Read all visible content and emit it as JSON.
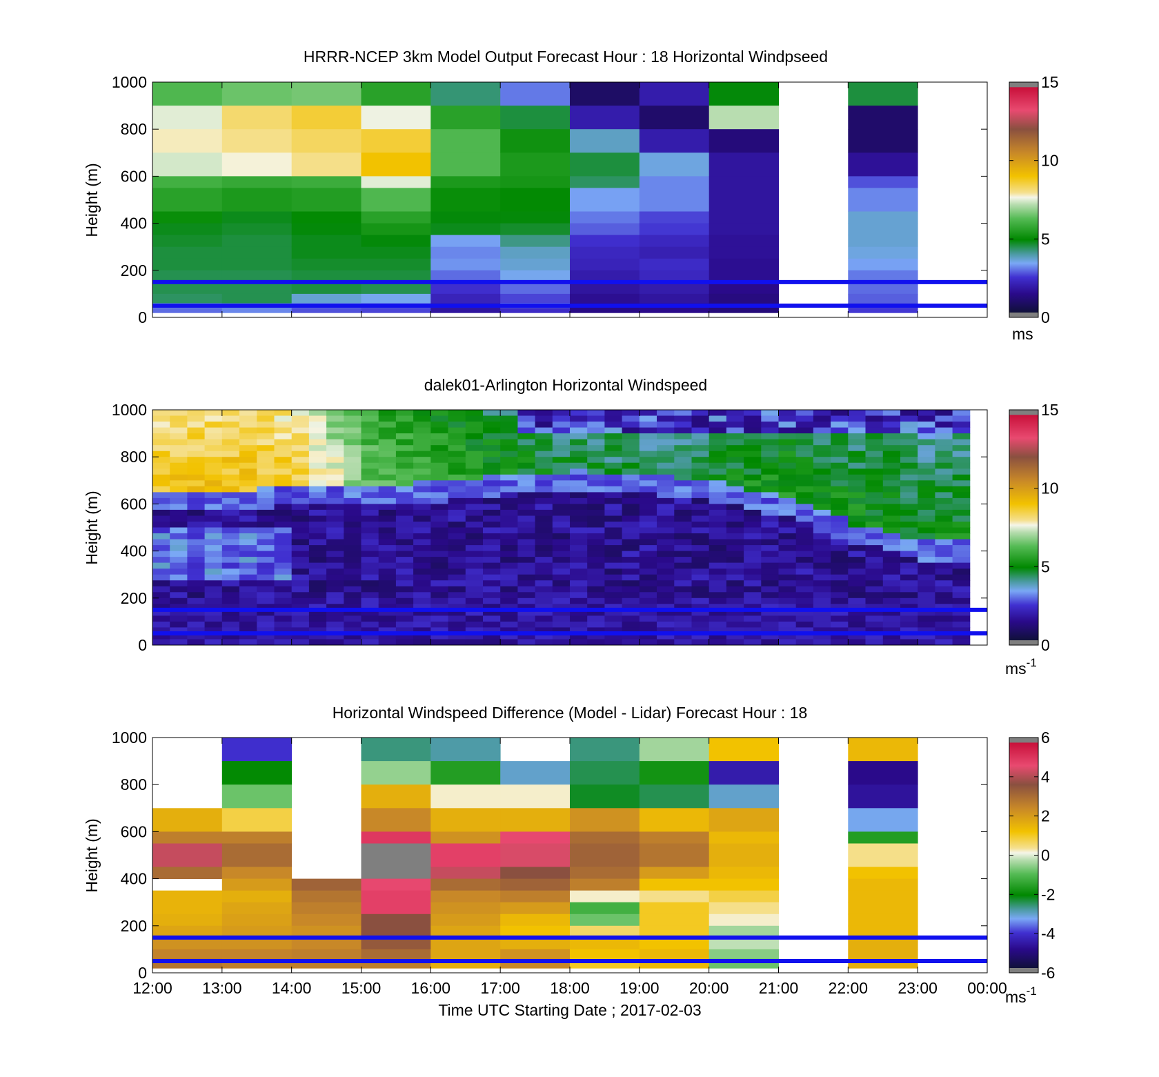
{
  "chart_data": [
    {
      "type": "heatmap",
      "title": "HRRR-NCEP 3km Model Output   Forecast Hour : 18 Horizontal Windpseed",
      "ylabel": "Height (m)",
      "ylim": [
        0,
        1000
      ],
      "yticks": [
        "0",
        "200",
        "400",
        "600",
        "800",
        "1000"
      ],
      "x_hours": [
        12,
        13,
        14,
        15,
        16,
        17,
        18,
        19,
        20,
        21,
        22,
        23,
        24
      ],
      "y_rows": [
        1000,
        900,
        800,
        700,
        600,
        550,
        450,
        400,
        350,
        300,
        250,
        200,
        150,
        100,
        60,
        40
      ],
      "columns": [
        {
          "hour": 12,
          "values": [
            6.2,
            7.5,
            7.8,
            7.4,
            6.0,
            5.6,
            5.1,
            4.8,
            4.7,
            4.6,
            4.6,
            4.5,
            4.5,
            4.4,
            3.6,
            3.0
          ]
        },
        {
          "hour": 13,
          "values": [
            6.5,
            8.2,
            8.0,
            7.7,
            5.8,
            5.4,
            4.8,
            4.7,
            4.6,
            4.6,
            4.6,
            4.5,
            4.5,
            4.5,
            3.8,
            3.2
          ]
        },
        {
          "hour": 14,
          "values": [
            6.6,
            8.6,
            8.3,
            8.0,
            5.9,
            5.5,
            5.0,
            4.9,
            4.8,
            4.8,
            4.7,
            4.6,
            4.6,
            3.7,
            3.2,
            2.8
          ]
        },
        {
          "hour": 15,
          "values": [
            5.6,
            7.6,
            8.6,
            9.0,
            7.5,
            6.2,
            5.6,
            5.3,
            4.9,
            4.8,
            4.7,
            4.6,
            4.5,
            3.5,
            3.0,
            2.7
          ]
        },
        {
          "hour": 16,
          "values": [
            4.3,
            5.6,
            6.2,
            6.2,
            5.4,
            5.1,
            4.9,
            4.8,
            3.4,
            3.2,
            3.3,
            3.0,
            2.5,
            2.2,
            2.0,
            1.8
          ]
        },
        {
          "hour": 17,
          "values": [
            3.1,
            4.6,
            5.2,
            5.4,
            5.3,
            5.0,
            4.9,
            4.7,
            4.2,
            3.8,
            3.7,
            3.5,
            3.0,
            2.7,
            3.2,
            2.4
          ]
        },
        {
          "hour": 18,
          "values": [
            0.8,
            2.0,
            3.8,
            4.6,
            4.4,
            3.4,
            3.1,
            2.9,
            2.5,
            2.3,
            2.2,
            2.0,
            1.8,
            1.6,
            1.5,
            1.4
          ]
        },
        {
          "hour": 19,
          "values": [
            2.0,
            0.9,
            2.0,
            3.6,
            3.2,
            3.2,
            2.7,
            2.6,
            2.3,
            2.1,
            2.4,
            2.3,
            2.0,
            1.8,
            1.6,
            1.5
          ]
        },
        {
          "hour": 20,
          "values": [
            4.9,
            7.2,
            1.2,
            1.8,
            1.8,
            1.8,
            1.8,
            1.8,
            1.7,
            1.7,
            1.6,
            1.6,
            1.5,
            1.3,
            1.2,
            1.2
          ]
        },
        {
          "hour": 21,
          "values": [
            null,
            null,
            null,
            null,
            null,
            null,
            null,
            null,
            null,
            null,
            null,
            null,
            null,
            null,
            null,
            null
          ]
        },
        {
          "hour": 22,
          "values": [
            4.6,
            0.9,
            0.9,
            1.7,
            2.8,
            3.2,
            3.7,
            3.7,
            3.7,
            3.6,
            3.4,
            3.1,
            3.0,
            2.9,
            2.8,
            2.6
          ]
        },
        {
          "hour": 23,
          "values": [
            null,
            null,
            null,
            null,
            null,
            null,
            null,
            null,
            null,
            null,
            null,
            null,
            null,
            null,
            null,
            null
          ]
        }
      ],
      "h_lines": [
        150,
        50
      ],
      "colorbar": {
        "range": [
          0,
          15
        ],
        "ticks": [
          "0",
          "5",
          "10",
          "15"
        ],
        "unit": "ms"
      }
    },
    {
      "type": "heatmap",
      "title": "dalek01-Arlington  Horizontal Windspeed",
      "ylabel": "Height (m)",
      "ylim": [
        0,
        1000
      ],
      "yticks": [
        "0",
        "200",
        "400",
        "600",
        "800",
        "1000"
      ],
      "x_hours_range": [
        12,
        24
      ],
      "profile_layers": {
        "top_speed_by_hour": [
          9.0,
          9.2,
          8.8,
          6.6,
          6.0,
          5.2,
          4.8,
          4.6,
          5.0,
          5.6,
          5.4,
          5.2
        ],
        "jet_base_height_m": [
          620,
          610,
          640,
          640,
          650,
          680,
          700,
          680,
          650,
          580,
          470,
          400
        ],
        "jet_core_speed": 0.8,
        "surface_speed": 1.8
      },
      "h_lines": [
        150,
        50
      ],
      "colorbar": {
        "range": [
          0,
          15
        ],
        "ticks": [
          "0",
          "5",
          "10",
          "15"
        ],
        "unit": "ms",
        "unit_sup": "-1"
      }
    },
    {
      "type": "heatmap",
      "title": "Horizontal Windspeed Difference (Model - Lidar) Forecast Hour : 18",
      "ylabel": "Height (m)",
      "xlabel": "Time UTC  Starting Date ; 2017-02-03",
      "ylim": [
        0,
        1000
      ],
      "yticks": [
        "0",
        "200",
        "400",
        "600",
        "800",
        "1000"
      ],
      "xticks": [
        "12:00",
        "13:00",
        "14:00",
        "15:00",
        "16:00",
        "17:00",
        "18:00",
        "19:00",
        "20:00",
        "21:00",
        "22:00",
        "23:00",
        "00:00"
      ],
      "y_rows": [
        1000,
        900,
        800,
        700,
        600,
        550,
        450,
        400,
        350,
        300,
        250,
        200,
        150,
        100,
        60,
        40
      ],
      "columns": [
        {
          "hour": 12,
          "values": [
            null,
            null,
            null,
            1.6,
            2.6,
            4.2,
            3.0,
            null,
            1.5,
            1.5,
            1.6,
            1.8,
            2.2,
            2.5,
            2.8,
            2.8
          ]
        },
        {
          "hour": 13,
          "values": [
            -4.0,
            -2.0,
            -0.8,
            0.8,
            2.6,
            3.0,
            2.4,
            2.0,
            1.6,
            1.8,
            1.9,
            2.0,
            2.2,
            2.5,
            2.6,
            2.6
          ]
        },
        {
          "hour": 14,
          "values": [
            null,
            null,
            null,
            null,
            null,
            null,
            null,
            3.2,
            2.8,
            2.6,
            2.4,
            2.2,
            2.4,
            2.6,
            2.6,
            2.6
          ]
        },
        {
          "hour": 15,
          "values": [
            -2.6,
            -0.5,
            1.6,
            2.4,
            5.0,
            6.5,
            6.5,
            4.6,
            4.8,
            4.8,
            3.6,
            3.6,
            3.4,
            3.0,
            2.8,
            2.6
          ]
        },
        {
          "hour": 16,
          "values": [
            -2.8,
            -1.6,
            0.2,
            1.6,
            2.2,
            4.8,
            4.2,
            3.0,
            2.4,
            2.2,
            2.0,
            1.8,
            1.8,
            1.8,
            1.6,
            1.6
          ]
        },
        {
          "hour": 17,
          "values": [
            null,
            -3.0,
            0.2,
            1.6,
            4.6,
            4.4,
            3.6,
            3.2,
            2.6,
            2.0,
            1.4,
            1.2,
            1.6,
            2.2,
            2.4,
            2.4
          ]
        },
        {
          "hour": 18,
          "values": [
            -2.6,
            -2.4,
            -2.2,
            2.2,
            3.0,
            3.2,
            3.0,
            2.6,
            0.2,
            -1.2,
            -0.8,
            0.6,
            1.4,
            1.2,
            1.0,
            1.0
          ]
        },
        {
          "hour": 19,
          "values": [
            -0.4,
            -1.8,
            -2.4,
            1.4,
            2.6,
            2.8,
            2.0,
            1.2,
            0.4,
            1.0,
            1.0,
            1.0,
            1.2,
            1.4,
            1.4,
            1.4
          ]
        },
        {
          "hour": 20,
          "values": [
            1.2,
            -4.4,
            -3.0,
            1.8,
            1.4,
            1.6,
            1.4,
            1.2,
            0.8,
            0.4,
            0.2,
            -0.4,
            -0.2,
            -0.6,
            -0.8,
            -0.8
          ]
        },
        {
          "hour": 21,
          "values": [
            null,
            null,
            null,
            null,
            null,
            null,
            null,
            null,
            null,
            null,
            null,
            null,
            null,
            null,
            null,
            null
          ]
        },
        {
          "hour": 22,
          "values": [
            1.4,
            -4.8,
            -4.6,
            -3.2,
            -1.6,
            0.4,
            1.2,
            1.4,
            1.4,
            1.4,
            1.4,
            1.4,
            1.6,
            1.6,
            1.6,
            1.6
          ]
        },
        {
          "hour": 23,
          "values": [
            null,
            null,
            null,
            null,
            null,
            null,
            null,
            null,
            null,
            null,
            null,
            null,
            null,
            null,
            null,
            null
          ]
        }
      ],
      "h_lines": [
        150,
        50
      ],
      "colorbar": {
        "range": [
          -6,
          6
        ],
        "ticks": [
          "-6",
          "-4",
          "-2",
          "0",
          "2",
          "4",
          "6"
        ],
        "unit": "ms",
        "unit_sup": "-1"
      }
    }
  ]
}
